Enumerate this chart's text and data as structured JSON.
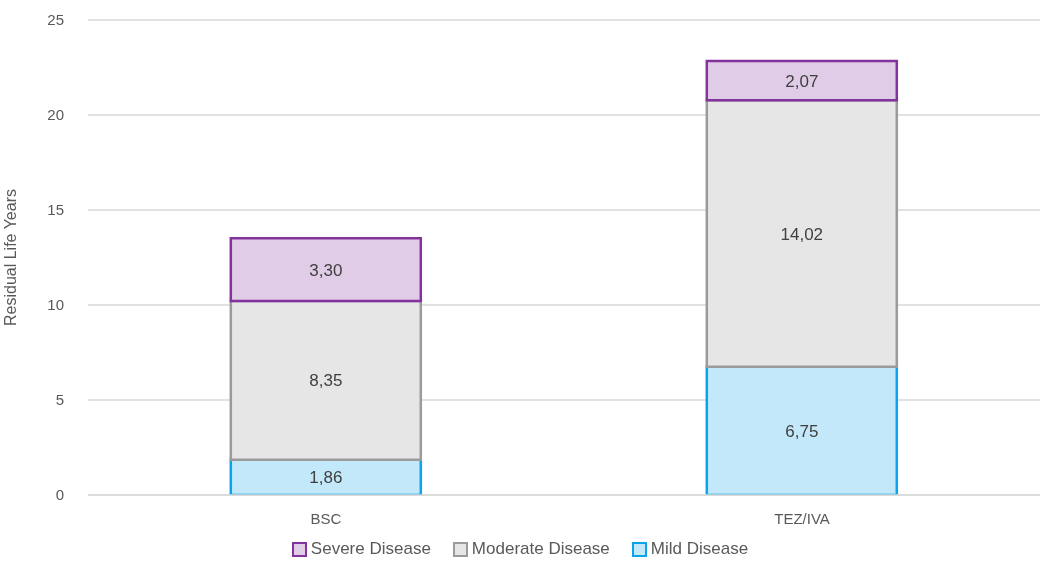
{
  "chart_data": {
    "type": "bar",
    "stacked": true,
    "ylabel": "Residual Life Years",
    "categories": [
      "BSC",
      "TEZ/IVA"
    ],
    "series": [
      {
        "name": "Mild Disease",
        "color": "#c2e8fa",
        "values": [
          1.86,
          6.75
        ],
        "value_labels": [
          "1,86",
          "6,75"
        ]
      },
      {
        "name": "Moderate Disease",
        "color": "#e6e6e6",
        "values": [
          8.35,
          14.02
        ],
        "value_labels": [
          "8,35",
          "14,02"
        ]
      },
      {
        "name": "Severe Disease",
        "color": "#e0cce6",
        "values": [
          3.3,
          2.07
        ],
        "value_labels": [
          "3,30",
          "2,07"
        ]
      }
    ],
    "ylim": [
      0,
      25
    ],
    "yticks": [
      0,
      5,
      10,
      15,
      20,
      25
    ],
    "grid": "y",
    "legend": "bottom"
  }
}
